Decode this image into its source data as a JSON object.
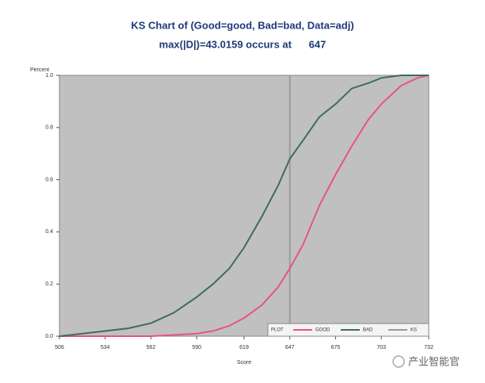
{
  "chart_data": {
    "type": "line",
    "title": "KS Chart of (Good=good, Bad=bad, Data=adj)",
    "subtitle": "max(|D|)=43.0159 occurs at      647",
    "ylabel": "Percent",
    "xlabel": "Score",
    "x": [
      506,
      520,
      534,
      548,
      562,
      576,
      590,
      600,
      610,
      619,
      630,
      640,
      647,
      655,
      665,
      675,
      685,
      695,
      703,
      715,
      725,
      732
    ],
    "series": [
      {
        "name": "GOOD",
        "color": "#e8557a",
        "values": [
          0,
          0,
          0,
          0,
          0,
          0.005,
          0.01,
          0.02,
          0.04,
          0.07,
          0.12,
          0.19,
          0.26,
          0.35,
          0.5,
          0.62,
          0.73,
          0.83,
          0.89,
          0.96,
          0.99,
          1.0
        ]
      },
      {
        "name": "BAD",
        "color": "#3d6b60",
        "values": [
          0,
          0.01,
          0.02,
          0.03,
          0.05,
          0.09,
          0.15,
          0.2,
          0.26,
          0.34,
          0.46,
          0.58,
          0.68,
          0.75,
          0.84,
          0.89,
          0.95,
          0.97,
          0.99,
          1.0,
          1.0,
          1.0
        ]
      }
    ],
    "ks": {
      "name": "KS",
      "x": 647,
      "color": "#9a9a9a"
    },
    "legend_title": "PLOT",
    "xlim": [
      506,
      732
    ],
    "xticks": [
      506,
      534,
      562,
      590,
      619,
      647,
      675,
      703,
      732
    ],
    "ylim": [
      0,
      1
    ],
    "yticks": [
      {
        "value": 0,
        "label": "0.0"
      },
      {
        "value": 0.2,
        "label": "0.2"
      },
      {
        "value": 0.4,
        "label": "0.4"
      },
      {
        "value": 0.6,
        "label": "0.6"
      },
      {
        "value": 0.8,
        "label": "0.8"
      },
      {
        "value": 1,
        "label": "1.0"
      }
    ],
    "plot_background": "#c0c0c0",
    "legend": "lower right"
  },
  "watermark": "产业智能官"
}
